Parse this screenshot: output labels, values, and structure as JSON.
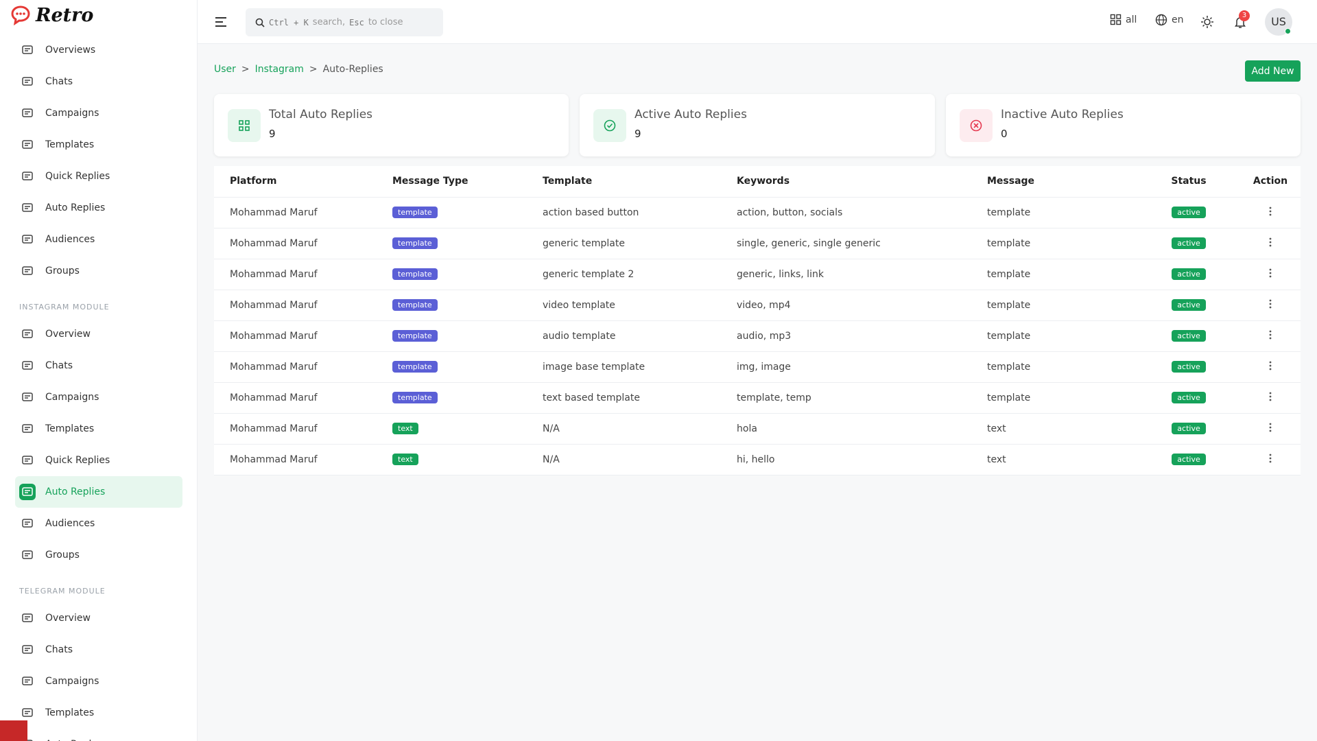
{
  "brand": "Retro",
  "sidebar": {
    "groups": [
      {
        "title": null,
        "items": [
          "Overviews",
          "Chats",
          "Campaigns",
          "Templates",
          "Quick Replies",
          "Auto Replies",
          "Audiences",
          "Groups"
        ]
      },
      {
        "title": "INSTAGRAM MODULE",
        "items": [
          "Overview",
          "Chats",
          "Campaigns",
          "Templates",
          "Quick Replies",
          "Auto Replies",
          "Audiences",
          "Groups"
        ],
        "active": 5
      },
      {
        "title": "TELEGRAM MODULE",
        "items": [
          "Overview",
          "Chats",
          "Campaigns",
          "Templates",
          "Auto Reply"
        ]
      }
    ]
  },
  "topbar": {
    "search": {
      "key1": "Ctrl + K",
      "text1": "search,",
      "key2": "Esc",
      "text2": "to close"
    },
    "filter": "all",
    "language": "en",
    "notifications": 3,
    "avatar": "US"
  },
  "breadcrumb": {
    "items": [
      "User",
      "Instagram",
      "Auto-Replies"
    ],
    "separator": ">"
  },
  "add_button": "Add New",
  "stats": [
    {
      "label": "Total Auto Replies",
      "value": 9
    },
    {
      "label": "Active Auto Replies",
      "value": 9
    },
    {
      "label": "Inactive Auto Replies",
      "value": 0
    }
  ],
  "table": {
    "headers": [
      "Platform",
      "Message Type",
      "Template",
      "Keywords",
      "Message",
      "Status",
      "Action"
    ],
    "rows": [
      [
        "Mohammad Maruf",
        "template",
        "action based button",
        "action, button, socials",
        "template",
        "active"
      ],
      [
        "Mohammad Maruf",
        "template",
        "generic template",
        "single, generic, single generic",
        "template",
        "active"
      ],
      [
        "Mohammad Maruf",
        "template",
        "generic template 2",
        "generic, links, link",
        "template",
        "active"
      ],
      [
        "Mohammad Maruf",
        "template",
        "video template",
        "video, mp4",
        "template",
        "active"
      ],
      [
        "Mohammad Maruf",
        "template",
        "audio template",
        "audio, mp3",
        "template",
        "active"
      ],
      [
        "Mohammad Maruf",
        "template",
        "image base template",
        "img, image",
        "template",
        "active"
      ],
      [
        "Mohammad Maruf",
        "template",
        "text based template",
        "template, temp",
        "template",
        "active"
      ],
      [
        "Mohammad Maruf",
        "text",
        "N/A",
        "hola",
        "text",
        "active"
      ],
      [
        "Mohammad Maruf",
        "text",
        "N/A",
        "hi, hello",
        "text",
        "active"
      ]
    ]
  }
}
